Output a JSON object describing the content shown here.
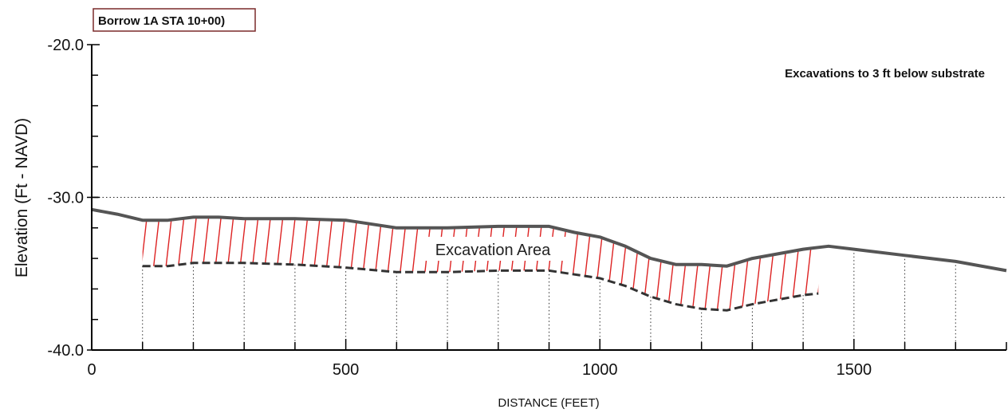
{
  "chart_data": {
    "type": "area",
    "title": "Borrow 1A STA 10+00)",
    "annotation": "Excavations to 3 ft below substrate",
    "area_label": "Excavation Area",
    "xlabel": "DISTANCE (FEET)",
    "ylabel": "Elevation (Ft - NAVD)",
    "xlim": [
      0,
      1800
    ],
    "ylim": [
      -40,
      -20
    ],
    "x_ticks": [
      0,
      500,
      1000,
      1500
    ],
    "x_tick_labels": [
      "0",
      "500",
      "1000",
      "1500"
    ],
    "y_ticks": [
      -20,
      -30,
      -40
    ],
    "y_tick_labels": [
      "-20.0",
      "-30.0",
      "-40.0"
    ],
    "reference_line": {
      "y": -30.0,
      "style": "dotted"
    },
    "grid": "vertical dotted lines every 100 ft",
    "grid_x": [
      100,
      200,
      300,
      400,
      500,
      600,
      700,
      800,
      900,
      1000,
      1100,
      1200,
      1300,
      1400,
      1500,
      1600,
      1700
    ],
    "colors": {
      "ground_line": "#555555",
      "hatch": "#dd2222",
      "excavation_bottom": "#333333",
      "axis": "#000000"
    },
    "series": [
      {
        "role": "existing-ground",
        "x": [
          0,
          50,
          100,
          150,
          200,
          250,
          300,
          400,
          500,
          600,
          700,
          800,
          900,
          950,
          1000,
          1050,
          1100,
          1150,
          1200,
          1250,
          1300,
          1350,
          1400,
          1450,
          1500,
          1600,
          1700,
          1800
        ],
        "y": [
          -30.8,
          -31.1,
          -31.5,
          -31.5,
          -31.3,
          -31.3,
          -31.4,
          -31.4,
          -31.5,
          -32.0,
          -32.0,
          -31.9,
          -31.9,
          -32.3,
          -32.6,
          -33.2,
          -34.0,
          -34.4,
          -34.4,
          -34.5,
          -34.0,
          -33.7,
          -33.4,
          -33.2,
          -33.4,
          -33.8,
          -34.2,
          -34.8
        ]
      },
      {
        "role": "excavation-bottom",
        "x": [
          100,
          150,
          200,
          300,
          400,
          500,
          600,
          700,
          800,
          900,
          1000,
          1050,
          1100,
          1150,
          1200,
          1250,
          1300,
          1350,
          1400,
          1430
        ],
        "y": [
          -34.5,
          -34.5,
          -34.3,
          -34.3,
          -34.4,
          -34.6,
          -34.9,
          -34.9,
          -34.8,
          -34.8,
          -35.3,
          -35.8,
          -36.5,
          -37.0,
          -37.3,
          -37.4,
          -37.0,
          -36.7,
          -36.4,
          -36.3
        ]
      }
    ]
  }
}
